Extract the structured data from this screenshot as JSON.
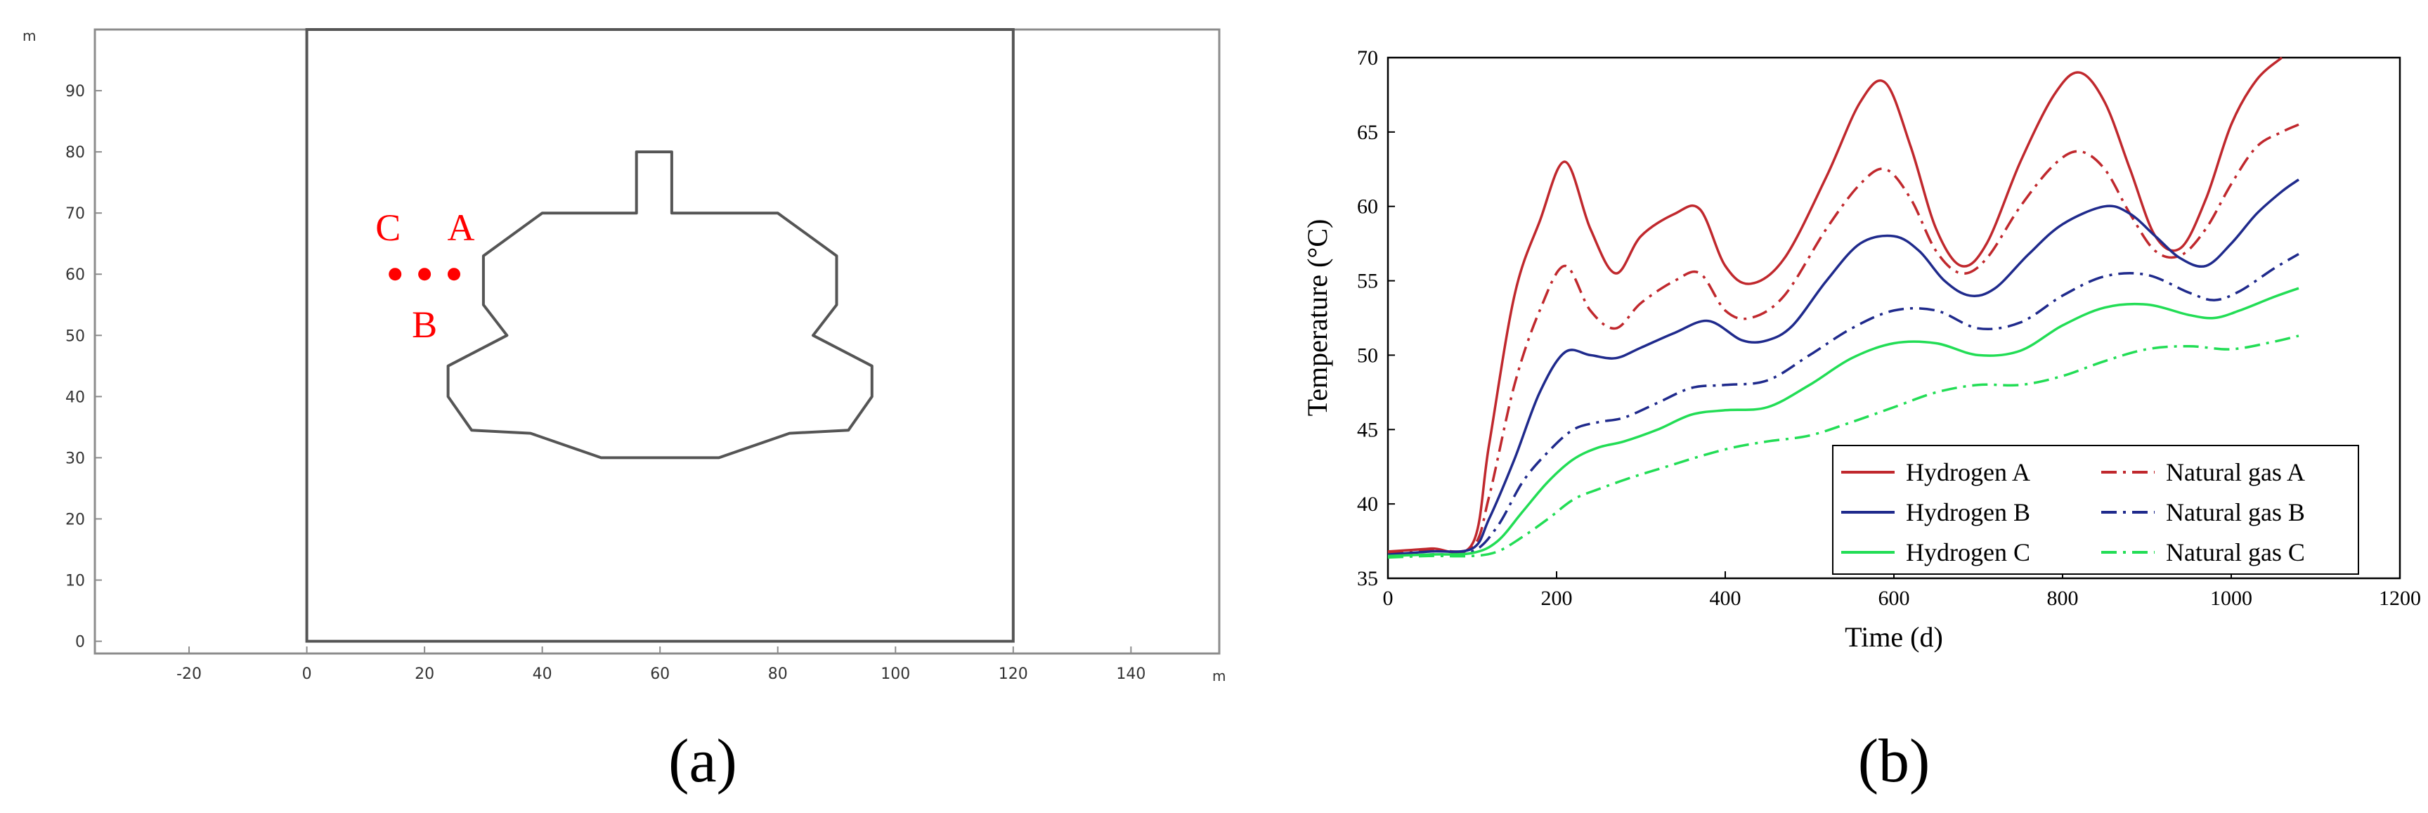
{
  "chart_data": [
    {
      "type": "diagram",
      "panel_label": "(a)",
      "axis_unit_label": "m",
      "x_axis": {
        "ticks": [
          -20,
          0,
          20,
          40,
          60,
          80,
          100,
          120,
          140
        ],
        "range": [
          -36,
          155
        ]
      },
      "y_axis": {
        "ticks": [
          0,
          10,
          20,
          30,
          40,
          50,
          60,
          70,
          80,
          90
        ],
        "range": [
          -2,
          100
        ]
      },
      "domain_box": {
        "x": [
          0,
          120
        ],
        "y": [
          0,
          100
        ]
      },
      "cavern_outline": [
        [
          60,
          80
        ],
        [
          56,
          80
        ],
        [
          56,
          70
        ],
        [
          40,
          70
        ],
        [
          30,
          63
        ],
        [
          30,
          55
        ],
        [
          34,
          50
        ],
        [
          24,
          45
        ],
        [
          24,
          40
        ],
        [
          28,
          34.5
        ],
        [
          38,
          34
        ],
        [
          50,
          30
        ],
        [
          70,
          30
        ],
        [
          82,
          34
        ],
        [
          92,
          34.5
        ],
        [
          96,
          40
        ],
        [
          96,
          45
        ],
        [
          86,
          50
        ],
        [
          90,
          55
        ],
        [
          90,
          63
        ],
        [
          80,
          70
        ],
        [
          62,
          70
        ],
        [
          62,
          80
        ],
        [
          60,
          80
        ]
      ],
      "monitoring_points": [
        {
          "label": "C",
          "x": 15,
          "y": 60
        },
        {
          "label": "B",
          "x": 20,
          "y": 60
        },
        {
          "label": "A",
          "x": 25,
          "y": 60
        }
      ],
      "point_color": "#ff0000"
    },
    {
      "type": "line",
      "panel_label": "(b)",
      "xlabel": "Time (d)",
      "ylabel": "Temperature (°C)",
      "xlim": [
        0,
        1200
      ],
      "ylim": [
        35,
        70
      ],
      "x_ticks": [
        0,
        200,
        400,
        600,
        800,
        1000,
        1200
      ],
      "y_ticks": [
        35,
        40,
        45,
        50,
        55,
        60,
        65,
        70
      ],
      "legend_position": "bottom-right",
      "series": [
        {
          "name": "Hydrogen A",
          "color": "#c0282d",
          "dash": "solid",
          "x": [
            0,
            50,
            100,
            120,
            150,
            180,
            210,
            240,
            270,
            300,
            340,
            370,
            400,
            430,
            470,
            520,
            560,
            590,
            620,
            650,
            680,
            710,
            750,
            790,
            820,
            850,
            880,
            910,
            940,
            970,
            1000,
            1030,
            1060
          ],
          "y": [
            36.8,
            37.0,
            37.3,
            44.0,
            54.0,
            59.0,
            63.0,
            58.5,
            55.5,
            58.0,
            59.5,
            59.8,
            56.0,
            54.8,
            56.5,
            62.0,
            67.0,
            68.3,
            64.0,
            58.5,
            56.0,
            57.5,
            63.0,
            67.5,
            69.0,
            67.0,
            62.5,
            58.0,
            57.2,
            60.5,
            65.5,
            68.5,
            70.0
          ]
        },
        {
          "name": "Natural gas A",
          "color": "#c0282d",
          "dash": "dashdot",
          "x": [
            0,
            50,
            100,
            120,
            150,
            180,
            210,
            240,
            270,
            300,
            340,
            370,
            400,
            430,
            470,
            520,
            560,
            590,
            620,
            650,
            680,
            710,
            750,
            790,
            820,
            850,
            880,
            910,
            940,
            970,
            1000,
            1030,
            1060,
            1080
          ],
          "y": [
            36.7,
            36.9,
            37.1,
            40.5,
            48.0,
            53.0,
            56.0,
            53.0,
            51.8,
            53.5,
            55.0,
            55.5,
            53.0,
            52.5,
            54.0,
            58.5,
            61.5,
            62.5,
            60.5,
            57.0,
            55.5,
            56.5,
            60.0,
            62.8,
            63.7,
            62.5,
            59.5,
            57.0,
            56.7,
            58.5,
            61.5,
            64.0,
            65.0,
            65.5
          ]
        },
        {
          "name": "Hydrogen B",
          "color": "#1f2a8c",
          "dash": "solid",
          "x": [
            0,
            50,
            100,
            120,
            150,
            180,
            210,
            240,
            270,
            300,
            340,
            380,
            420,
            450,
            480,
            520,
            560,
            600,
            630,
            660,
            690,
            720,
            760,
            800,
            850,
            880,
            910,
            940,
            970,
            1000,
            1030,
            1060,
            1080
          ],
          "y": [
            36.6,
            36.8,
            37.0,
            39.0,
            43.0,
            47.5,
            50.2,
            50.0,
            49.8,
            50.5,
            51.5,
            52.3,
            51.0,
            51.0,
            52.0,
            55.0,
            57.5,
            58.0,
            57.0,
            55.0,
            54.0,
            54.5,
            56.8,
            58.8,
            60.0,
            59.5,
            58.0,
            56.5,
            56.0,
            57.5,
            59.5,
            61.0,
            61.8
          ]
        },
        {
          "name": "Natural gas B",
          "color": "#1f2a8c",
          "dash": "dashdot",
          "x": [
            0,
            50,
            100,
            130,
            160,
            190,
            220,
            250,
            280,
            320,
            360,
            400,
            450,
            500,
            550,
            600,
            650,
            700,
            750,
            800,
            850,
            900,
            950,
            980,
            1010,
            1050,
            1080
          ],
          "y": [
            36.5,
            36.6,
            36.8,
            38.5,
            41.5,
            43.5,
            45.0,
            45.5,
            45.8,
            46.8,
            47.8,
            48.0,
            48.3,
            50.0,
            51.8,
            53.0,
            53.0,
            51.8,
            52.2,
            54.0,
            55.3,
            55.4,
            54.2,
            53.7,
            54.3,
            55.8,
            56.8
          ]
        },
        {
          "name": "Hydrogen C",
          "color": "#22dd55",
          "dash": "solid",
          "x": [
            0,
            50,
            100,
            130,
            160,
            190,
            220,
            250,
            280,
            320,
            360,
            400,
            450,
            500,
            550,
            600,
            650,
            700,
            750,
            800,
            850,
            900,
            950,
            980,
            1010,
            1050,
            1080
          ],
          "y": [
            36.5,
            36.6,
            36.7,
            37.5,
            39.5,
            41.5,
            43.0,
            43.8,
            44.2,
            45.0,
            46.0,
            46.3,
            46.5,
            48.0,
            49.8,
            50.8,
            50.8,
            50.0,
            50.3,
            52.0,
            53.2,
            53.4,
            52.7,
            52.5,
            53.0,
            53.9,
            54.5
          ]
        },
        {
          "name": "Natural gas C",
          "color": "#22dd55",
          "dash": "dashdot",
          "x": [
            0,
            50,
            100,
            130,
            160,
            190,
            220,
            250,
            290,
            330,
            370,
            410,
            450,
            500,
            550,
            600,
            650,
            700,
            750,
            800,
            850,
            900,
            950,
            1000,
            1050,
            1080
          ],
          "y": [
            36.4,
            36.5,
            36.5,
            36.8,
            37.8,
            39.0,
            40.3,
            41.0,
            41.8,
            42.5,
            43.2,
            43.8,
            44.2,
            44.6,
            45.5,
            46.5,
            47.5,
            48.0,
            48.0,
            48.6,
            49.6,
            50.4,
            50.6,
            50.4,
            50.9,
            51.3
          ]
        }
      ]
    }
  ]
}
